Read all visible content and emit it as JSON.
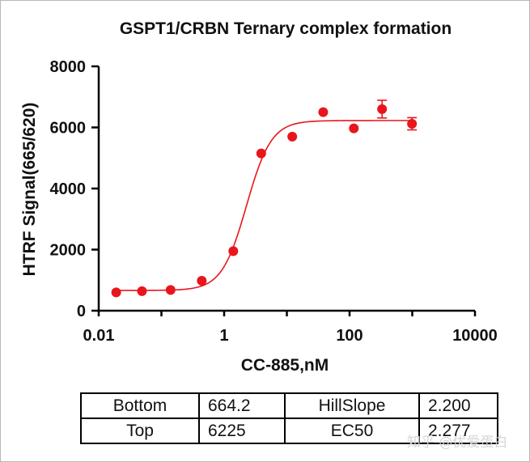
{
  "chart_data": {
    "type": "scatter",
    "title": "GSPT1/CRBN Ternary complex formation",
    "xlabel": "CC-885,nM",
    "ylabel": "HTRF Signal(665/620)",
    "xscale": "log",
    "xlim": [
      0.01,
      10000
    ],
    "ylim": [
      0,
      8000
    ],
    "xticks": [
      0.01,
      1,
      100,
      10000
    ],
    "xtick_labels": [
      "0.01",
      "1",
      "100",
      "10000"
    ],
    "yticks": [
      0,
      2000,
      4000,
      6000,
      8000
    ],
    "ytick_labels": [
      "0",
      "2000",
      "4000",
      "6000",
      "8000"
    ],
    "grid": false,
    "color": "#e8161c",
    "series": [
      {
        "name": "CC-885",
        "x": [
          0.019,
          0.049,
          0.14,
          0.44,
          1.4,
          3.9,
          12.2,
          38,
          117,
          330,
          990
        ],
        "y": [
          600,
          640,
          680,
          980,
          1950,
          5150,
          5700,
          6500,
          5970,
          6600,
          6120
        ],
        "error": [
          0,
          0,
          0,
          0,
          0,
          0,
          0,
          0,
          0,
          290,
          200
        ]
      }
    ],
    "fit": {
      "model": "4PL",
      "bottom": 664.2,
      "top": 6225,
      "hillslope": 2.2,
      "ec50": 2.277,
      "x_range": [
        0.019,
        990
      ]
    }
  },
  "params_table": {
    "rows": [
      {
        "label_a": "Bottom",
        "value_a": "664.2",
        "label_b": "HillSlope",
        "value_b": "2.200"
      },
      {
        "label_a": "Top",
        "value_a": "6225",
        "label_b": "EC50",
        "value_b": "2.277"
      }
    ]
  },
  "watermark": "知乎 @优爱蛋白"
}
